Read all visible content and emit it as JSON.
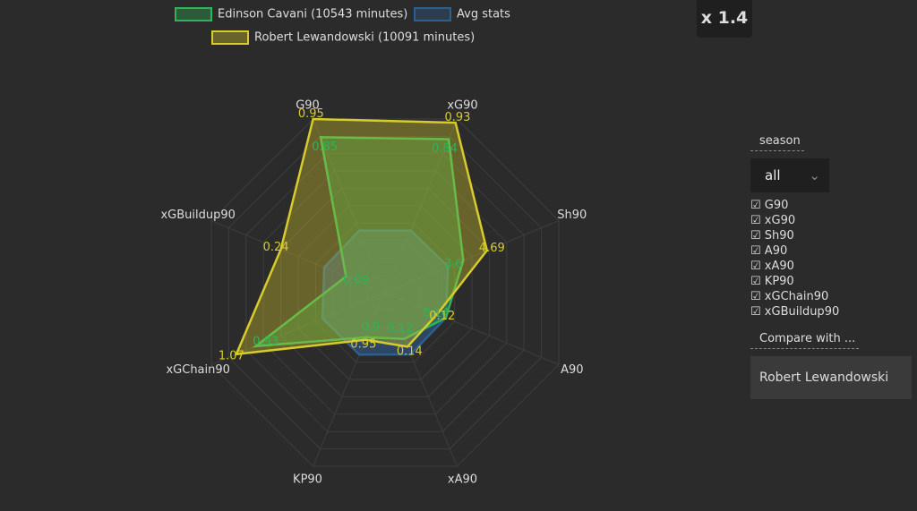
{
  "chart_data": {
    "type": "radar",
    "categories": [
      "G90",
      "xG90",
      "Sh90",
      "A90",
      "xA90",
      "KP90",
      "xGChain90",
      "xGBuildup90"
    ],
    "axis_max": [
      0.95,
      0.95,
      8,
      0.4,
      0.45,
      3.5,
      1.25,
      0.4
    ],
    "series": [
      {
        "name": "Edinson Cavani (10543 minutes)",
        "color": "#2fb35a",
        "values": [
          0.85,
          0.84,
          3.6,
          0.14,
          0.12,
          0.9,
          0.93,
          0.09
        ]
      },
      {
        "name": "Avg stats",
        "color": "#2f5f8f",
        "values": [
          0.34,
          0.34,
          2.9,
          0.14,
          0.16,
          1.25,
          0.45,
          0.14
        ]
      },
      {
        "name": "Robert Lewandowski (10091 minutes)",
        "color": "#d8cc2c",
        "values": [
          0.95,
          0.93,
          4.69,
          0.12,
          0.14,
          0.95,
          1.07,
          0.24
        ]
      }
    ]
  },
  "ui": {
    "zoom": "x 1.4",
    "season_label": "season",
    "season_value": "all",
    "compare_label": "Compare with ...",
    "compare_value": "Robert Lewandowski"
  }
}
